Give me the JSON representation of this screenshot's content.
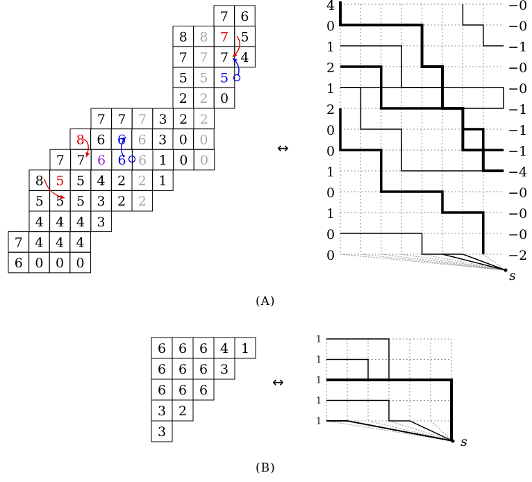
{
  "a": {
    "caption": "(A)",
    "left_tableau": {
      "rows": [
        [
          "7",
          "6"
        ],
        [
          "8",
          "8",
          "7",
          "5"
        ],
        [
          "7",
          "7",
          "7",
          "4"
        ],
        [
          "5",
          "5",
          "5"
        ],
        [
          "2",
          "2",
          "0"
        ],
        [
          "7",
          "7",
          "7",
          "3",
          "2",
          "2"
        ],
        [
          "8",
          "6",
          "6",
          "6",
          "3",
          "0",
          "0"
        ],
        [
          "7",
          "7",
          "6",
          "6",
          "6",
          "1",
          "0",
          "0"
        ],
        [
          "8",
          "5",
          "5",
          "4",
          "2",
          "2",
          "1"
        ],
        [
          "5",
          "5",
          "5",
          "3",
          "2",
          "2"
        ],
        [
          "4",
          "4",
          "4",
          "3"
        ],
        [
          "7",
          "4",
          "4",
          "4"
        ],
        [
          "6",
          "0",
          "0",
          "0"
        ]
      ]
    },
    "equiv": "↔",
    "left_labels": [
      "4",
      "0",
      "1",
      "2",
      "1",
      "2",
      "0",
      "0",
      "1",
      "0",
      "1",
      "0",
      "0"
    ],
    "right_labels": [
      "−0",
      "−0",
      "−1",
      "−0",
      "−0",
      "−1",
      "−1",
      "−1",
      "−4",
      "−0",
      "−0",
      "−0",
      "−2"
    ],
    "sink": "s"
  },
  "b": {
    "caption": "(B)",
    "tableau": {
      "rows": [
        [
          "6",
          "6",
          "6",
          "4",
          "1"
        ],
        [
          "6",
          "6",
          "6",
          "3"
        ],
        [
          "6",
          "6",
          "6"
        ],
        [
          "3",
          "2"
        ],
        [
          "3"
        ]
      ]
    },
    "equiv": "↔",
    "left_labels": [
      "1",
      "1",
      "1",
      "1",
      "1"
    ],
    "sink": "s"
  },
  "colors": {
    "gray": "#a6a6a6",
    "red": "#e00000",
    "blue": "#0000e0",
    "purple": "#9a30d0",
    "grid": "#8c8c8c"
  }
}
